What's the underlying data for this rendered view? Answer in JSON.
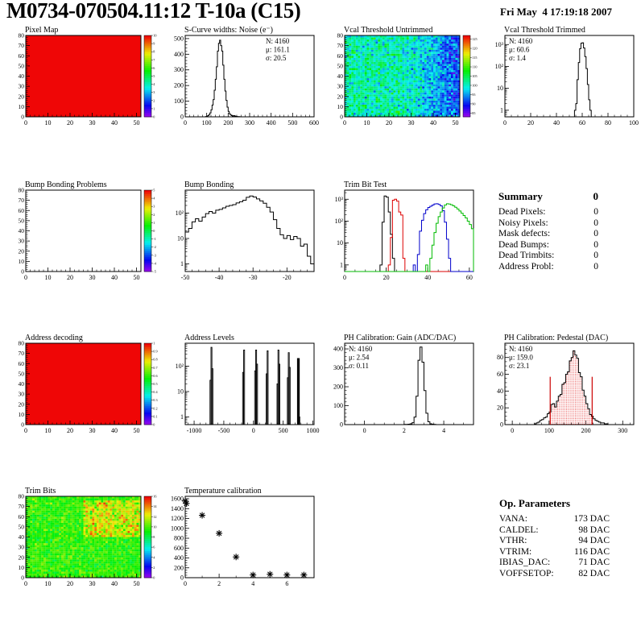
{
  "header": {
    "title": "M0734-070504.11:12 T-10a (C15)",
    "datetime": "Fri May  4 17:19:18 2007"
  },
  "summary": {
    "heading": "Summary",
    "heading_value": "0",
    "rows": [
      {
        "label": "Dead Pixels:",
        "value": "0"
      },
      {
        "label": "Noisy Pixels:",
        "value": "0"
      },
      {
        "label": "Mask defects:",
        "value": "0"
      },
      {
        "label": "Dead Bumps:",
        "value": "0"
      },
      {
        "label": "Dead Trimbits:",
        "value": "0"
      },
      {
        "label": "Address Probl:",
        "value": "0"
      }
    ]
  },
  "op_parameters": {
    "heading": "Op. Parameters",
    "rows": [
      {
        "label": "VANA:",
        "value": "173 DAC"
      },
      {
        "label": "CALDEL:",
        "value": "98 DAC"
      },
      {
        "label": "VTHR:",
        "value": "94 DAC"
      },
      {
        "label": "VTRIM:",
        "value": "116 DAC"
      },
      {
        "label": "IBIAS_DAC:",
        "value": "71 DAC"
      },
      {
        "label": "VOFFSETOP:",
        "value": "82 DAC"
      }
    ]
  },
  "chart_data": [
    {
      "id": "pixel-map",
      "cell": [
        0,
        0
      ],
      "type": "heatmap",
      "title": "Pixel Map",
      "x": {
        "min": 0,
        "max": 52,
        "major": [
          0,
          10,
          20,
          30,
          40,
          50
        ],
        "minor": 2
      },
      "y": {
        "min": 0,
        "max": 80,
        "major": [
          0,
          10,
          20,
          30,
          40,
          50,
          60,
          70,
          80
        ],
        "minor": 2
      },
      "z": {
        "min": 0,
        "max": 10,
        "ticks": [
          0,
          1,
          2,
          3,
          4,
          5,
          6,
          7,
          8,
          9,
          10
        ]
      },
      "fill": {
        "mode": "uniform",
        "value": 10
      }
    },
    {
      "id": "scurve-noise",
      "cell": [
        0,
        1
      ],
      "type": "hist",
      "title": "S-Curve widths: Noise (e⁻)",
      "x": {
        "min": 0,
        "max": 600,
        "major": [
          0,
          100,
          200,
          300,
          400,
          500,
          600
        ],
        "minor": 20
      },
      "y": {
        "min": 0,
        "max": 520,
        "major": [
          0,
          100,
          200,
          300,
          400,
          500
        ],
        "minor": 20
      },
      "bins": {
        "start": 95,
        "width": 5,
        "counts": [
          2,
          4,
          8,
          15,
          25,
          45,
          75,
          110,
          170,
          240,
          320,
          420,
          470,
          490,
          455,
          420,
          330,
          240,
          165,
          105,
          62,
          35,
          20,
          12,
          8,
          5,
          8,
          5,
          3,
          2,
          1,
          1
        ]
      },
      "stats": {
        "pos": "right",
        "lines": [
          {
            "text": "N: 4160",
            "color": "#000000"
          },
          {
            "text": "μ: 161.1",
            "color": "#000000"
          },
          {
            "text": "σ: 20.5",
            "color": "#000000"
          }
        ]
      }
    },
    {
      "id": "vcal-untrimmed",
      "cell": [
        0,
        2
      ],
      "type": "heatmap",
      "title": "Vcal Threshold Untrimmed",
      "x": {
        "min": 0,
        "max": 52,
        "major": [
          0,
          10,
          20,
          30,
          40,
          50
        ],
        "minor": 2
      },
      "y": {
        "min": 0,
        "max": 80,
        "major": [
          0,
          10,
          20,
          30,
          40,
          50,
          60,
          70,
          80
        ],
        "minor": 2
      },
      "z": {
        "min": 83,
        "max": 127,
        "ticks": [
          85,
          90,
          95,
          100,
          105,
          110,
          115,
          120,
          125
        ]
      },
      "fill": {
        "mode": "noise",
        "seed": 42,
        "base": 101,
        "sd": 3.2,
        "trend": {
          "from_col": 26,
          "per_col": -0.38
        }
      }
    },
    {
      "id": "vcal-trimmed",
      "cell": [
        0,
        3
      ],
      "type": "hist",
      "title": "Vcal Threshold Trimmed",
      "x": {
        "min": 0,
        "max": 100,
        "major": [
          0,
          20,
          40,
          60,
          80,
          100
        ],
        "minor": 5
      },
      "y": {
        "log": true,
        "min": 0.5,
        "max": 2600
      },
      "bins": {
        "start": 54,
        "width": 1,
        "counts": [
          1,
          2,
          25,
          150,
          650,
          1150,
          1200,
          700,
          280,
          80,
          15,
          3,
          1
        ]
      },
      "stats": {
        "pos": "left",
        "lines": [
          {
            "text": "N: 4160",
            "color": "#000000"
          },
          {
            "text": "μ: 60.6",
            "color": "#000000"
          },
          {
            "text": "σ: 1.4",
            "color": "#000000"
          }
        ]
      }
    },
    {
      "id": "bump-problems",
      "cell": [
        1,
        0
      ],
      "type": "heatmap",
      "title": "Bump Bonding Problems",
      "x": {
        "min": 0,
        "max": 52,
        "major": [
          0,
          10,
          20,
          30,
          40,
          50
        ],
        "minor": 2
      },
      "y": {
        "min": 0,
        "max": 80,
        "major": [
          0,
          10,
          20,
          30,
          40,
          50,
          60,
          70,
          80
        ],
        "minor": 2
      },
      "z": {
        "min": -5,
        "max": 5,
        "ticks": [
          -5,
          -4,
          -3,
          -2,
          -1,
          0,
          1,
          2,
          3,
          4,
          5
        ]
      },
      "fill": {
        "mode": "none"
      }
    },
    {
      "id": "bump-bonding",
      "cell": [
        1,
        1
      ],
      "type": "hist",
      "title": "Bump Bonding",
      "x": {
        "min": -50,
        "max": -12,
        "major": [
          -50,
          -40,
          -30,
          -20
        ],
        "minor": 2
      },
      "y": {
        "log": true,
        "min": 0.5,
        "max": 800
      },
      "bins": {
        "start": -50,
        "width": 1,
        "counts": [
          18,
          25,
          45,
          60,
          48,
          70,
          95,
          115,
          100,
          130,
          140,
          160,
          185,
          200,
          215,
          250,
          280,
          320,
          420,
          470,
          430,
          360,
          300,
          245,
          170,
          110,
          55,
          25,
          14,
          10,
          13,
          9,
          12,
          10,
          5,
          6,
          2,
          1
        ]
      }
    },
    {
      "id": "trim-bit-test",
      "cell": [
        1,
        2
      ],
      "type": "hist",
      "title": "Trim Bit Test",
      "x": {
        "min": 0,
        "max": 62,
        "major": [
          0,
          20,
          40,
          60
        ],
        "minor": 5
      },
      "y": {
        "log": true,
        "min": 0.5,
        "max": 2600
      },
      "series": [
        {
          "color": "#000000",
          "start": 17,
          "width": 1,
          "counts": [
            1,
            90,
            1400,
            1250,
            260,
            25,
            2
          ]
        },
        {
          "color": "#dd0000",
          "start": 21,
          "width": 1,
          "counts": [
            1,
            18,
            900,
            1000,
            820,
            260,
            190,
            2
          ]
        },
        {
          "color": "#0000cc",
          "start": 33,
          "width": 1,
          "counts": [
            1,
            0,
            3,
            35,
            110,
            220,
            330,
            420,
            480,
            540,
            610,
            620,
            580,
            500,
            300,
            90,
            15,
            2
          ]
        },
        {
          "color": "#00bb00",
          "start": 39,
          "width": 1,
          "counts": [
            1,
            0,
            2,
            8,
            30,
            80,
            160,
            260,
            400,
            550,
            620,
            600,
            560,
            500,
            430,
            360,
            290,
            230,
            180,
            140,
            100,
            70,
            45
          ]
        }
      ]
    },
    {
      "id": "address-decoding",
      "cell": [
        2,
        0
      ],
      "type": "heatmap",
      "title": "Address decoding",
      "x": {
        "min": 0,
        "max": 52,
        "major": [
          0,
          10,
          20,
          30,
          40,
          50
        ],
        "minor": 2
      },
      "y": {
        "min": 0,
        "max": 80,
        "major": [
          0,
          10,
          20,
          30,
          40,
          50,
          60,
          70,
          80
        ],
        "minor": 2
      },
      "z": {
        "min": 0,
        "max": 1,
        "ticks": [
          0,
          0.1,
          0.2,
          0.3,
          0.4,
          0.5,
          0.6,
          0.7,
          0.8,
          0.9,
          1
        ]
      },
      "fill": {
        "mode": "uniform",
        "value": 1
      }
    },
    {
      "id": "address-levels",
      "cell": [
        2,
        1
      ],
      "type": "spikes",
      "title": "Address Levels",
      "x": {
        "min": -1150,
        "max": 1020,
        "major": [
          -1000,
          -500,
          0,
          500,
          1000
        ],
        "minor": 100
      },
      "y": {
        "log": true,
        "min": 0.5,
        "max": 800
      },
      "spike_width": 16,
      "spikes": [
        [
          -725,
          28
        ],
        [
          -708,
          550
        ],
        [
          -692,
          80
        ],
        [
          -175,
          57
        ],
        [
          -158,
          430
        ],
        [
          28,
          65
        ],
        [
          44,
          430
        ],
        [
          60,
          120
        ],
        [
          222,
          50
        ],
        [
          238,
          400
        ],
        [
          404,
          20
        ],
        [
          420,
          430
        ],
        [
          436,
          120
        ],
        [
          578,
          35
        ],
        [
          594,
          340
        ],
        [
          610,
          90
        ],
        [
          748,
          200,
          "solid"
        ],
        [
          764,
          200,
          "solid"
        ],
        [
          772,
          1
        ]
      ]
    },
    {
      "id": "ph-gain",
      "cell": [
        2,
        2
      ],
      "type": "hist",
      "title": "PH Calibration: Gain (ADC/DAC)",
      "x": {
        "min": -1,
        "max": 5.5,
        "major": [
          0,
          2,
          4
        ],
        "minor": 0.5
      },
      "y": {
        "min": 0,
        "max": 430,
        "major": [
          0,
          100,
          200,
          300,
          400
        ],
        "minor": 20
      },
      "bins": {
        "start": 2.0,
        "width": 0.1,
        "counts": [
          1,
          1,
          2,
          4,
          10,
          40,
          150,
          340,
          410,
          330,
          180,
          60,
          15,
          4,
          2,
          1
        ]
      },
      "stats": {
        "pos": "left",
        "lines": [
          {
            "text": "N: 4160",
            "color": "#000000"
          },
          {
            "text": "μ: 2.54",
            "color": "#000000"
          },
          {
            "text": "σ: 0.11",
            "color": "#000000"
          }
        ]
      }
    },
    {
      "id": "ph-pedestal",
      "cell": [
        2,
        3
      ],
      "type": "hist",
      "title": "PH Calibration: Pedestal (DAC)",
      "x": {
        "min": -20,
        "max": 330,
        "major": [
          0,
          100,
          200,
          300
        ],
        "minor": 20
      },
      "y": {
        "min": 0,
        "max": 97,
        "major": [
          0,
          20,
          40,
          60,
          80
        ],
        "minor": 5
      },
      "bins": {
        "start": 60,
        "width": 5,
        "counts": [
          1,
          2,
          3,
          5,
          6,
          8,
          9,
          13,
          15,
          24,
          25,
          21,
          28,
          34,
          36,
          48,
          50,
          60,
          63,
          76,
          80,
          88,
          83,
          79,
          62,
          57,
          41,
          34,
          25,
          19,
          12,
          10,
          7,
          5,
          4,
          3,
          2,
          2,
          1,
          1
        ]
      },
      "fill": {
        "pattern": "red-dots",
        "from": 103,
        "to": 217
      },
      "vlines": [
        {
          "x": 103,
          "y": 57,
          "color": "#cc0000"
        },
        {
          "x": 217,
          "y": 57,
          "color": "#cc0000"
        }
      ],
      "stats": {
        "pos": "left",
        "lines": [
          {
            "text": "N: 4160",
            "color": "#000000"
          },
          {
            "text": "μ: 159.0",
            "color": "#cc0000"
          },
          {
            "text": "σ: 23.1",
            "color": "#cc0000"
          }
        ]
      }
    },
    {
      "id": "trim-bits",
      "cell": [
        3,
        0
      ],
      "type": "heatmap",
      "title": "Trim Bits",
      "x": {
        "min": 0,
        "max": 52,
        "major": [
          0,
          10,
          20,
          30,
          40,
          50
        ],
        "minor": 2
      },
      "y": {
        "min": 0,
        "max": 80,
        "major": [
          0,
          10,
          20,
          30,
          40,
          50,
          60,
          70,
          80
        ],
        "minor": 2
      },
      "z": {
        "min": 0,
        "max": 16,
        "ticks": [
          0,
          2,
          4,
          6,
          8,
          10,
          12,
          14,
          16
        ]
      },
      "fill": {
        "mode": "noise",
        "seed": 7,
        "base": 9.6,
        "sd": 0.8,
        "patch": {
          "col_min": 26,
          "col_max": 52,
          "row_min": 20,
          "row_max": 37,
          "add": 2.4,
          "sd": 1.2
        }
      }
    },
    {
      "id": "temperature",
      "cell": [
        3,
        1
      ],
      "type": "scatter",
      "title": "Temperature calibration",
      "x": {
        "min": 0,
        "max": 7.6,
        "major": [
          0,
          2,
          4,
          6
        ],
        "minor": 1
      },
      "y": {
        "min": 0,
        "max": 1650,
        "major": [
          0,
          200,
          400,
          600,
          800,
          1000,
          1200,
          1400,
          1600
        ],
        "minor": 50
      },
      "points": [
        [
          0,
          1555
        ],
        [
          0.07,
          1505
        ],
        [
          1,
          1265
        ],
        [
          2,
          900
        ],
        [
          3,
          420
        ],
        [
          4,
          55
        ],
        [
          5,
          70
        ],
        [
          6,
          55
        ],
        [
          7,
          55
        ]
      ]
    }
  ]
}
